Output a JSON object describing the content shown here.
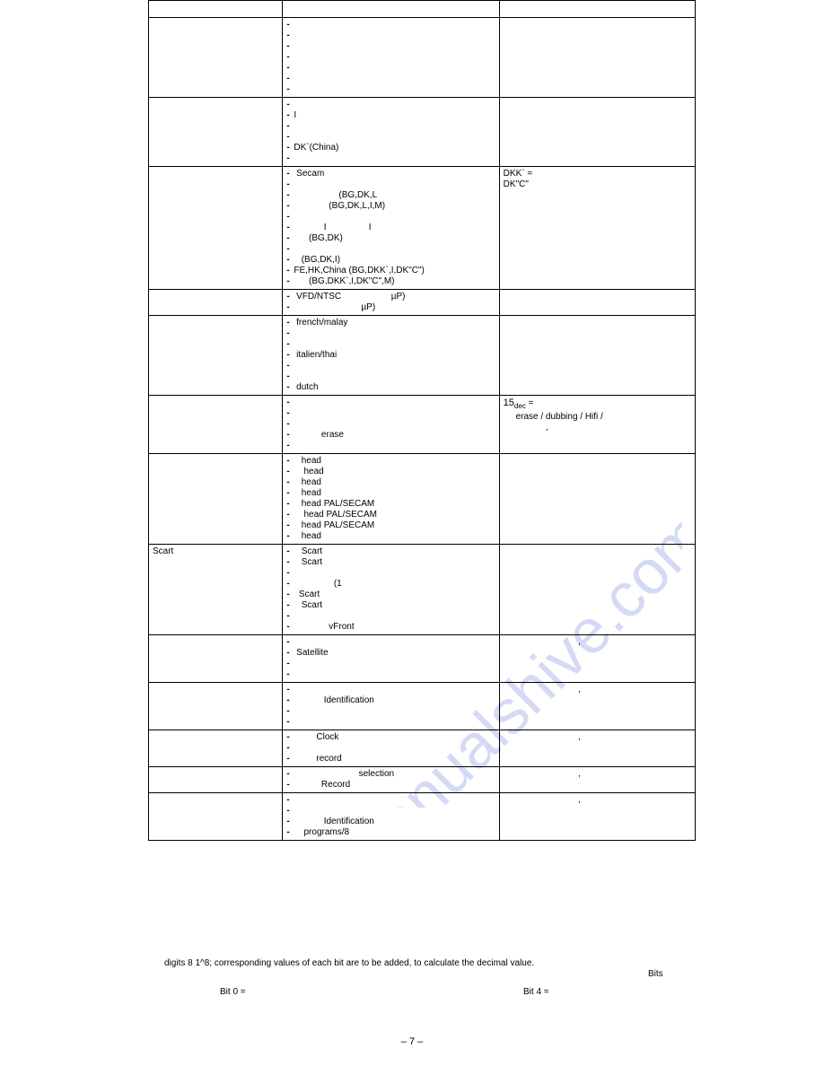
{
  "watermark": "manualshive.com",
  "page_number": "– 7 –",
  "table": {
    "columns": [
      "a",
      "b",
      "c"
    ],
    "rows": [
      {
        "a": "",
        "b": "",
        "c": "",
        "top_empty": true
      },
      {
        "a": "",
        "b_lines": [
          "-",
          "-",
          "-",
          "-",
          "-",
          "-",
          "-"
        ],
        "c": ""
      },
      {
        "a": "",
        "b_lines": [
          "-",
          "-I",
          "-",
          "-",
          "-DK`(China)",
          "-"
        ],
        "c": ""
      },
      {
        "a": "",
        "b_lines": [
          "- Secam",
          "-",
          "-                  (BG,DK,L",
          "-              (BG,DK,L,I,M)",
          "-",
          "-            I                 I",
          "-      (BG,DK)",
          "-",
          "-   (BG,DK,I)",
          "-FE,HK,China (BG,DKK`,I,DK\"C\")",
          "-      (BG,DKK`,I,DK\"C\",M)"
        ],
        "c_lines": [
          "",
          "",
          "",
          "",
          "",
          "",
          "",
          "",
          "",
          "DKK` =",
          "DK\"C\""
        ]
      },
      {
        "a": "",
        "b_lines": [
          "- VFD/NTSC                    µP)",
          "-                           µP)"
        ],
        "c": ""
      },
      {
        "a": "",
        "b_lines": [
          "- french/malay",
          "-",
          "-",
          "- italien/thai",
          "-",
          "-",
          "- dutch"
        ],
        "c": ""
      },
      {
        "a": "",
        "b_lines": [
          "-",
          "-",
          "-",
          "-           erase",
          "-"
        ],
        "c_lines": [
          "15dec =",
          "     erase / dubbing / Hifi /",
          "",
          "                 ,"
        ]
      },
      {
        "a": "",
        "b_lines": [
          "-   head",
          "-    head",
          "-   head",
          "-   head",
          "-   head PAL/SECAM",
          "-    head PAL/SECAM",
          "-   head PAL/SECAM",
          "-   head"
        ],
        "c": ""
      },
      {
        "a": "Scart",
        "b_lines": [
          "-   Scart",
          "-   Scart",
          "-",
          "-                (1",
          "-  Scart",
          "-   Scart",
          "-",
          "-              vFront"
        ],
        "c": ""
      },
      {
        "a": "",
        "b_lines": [
          "-",
          "- Satellite",
          "-",
          "-"
        ],
        "c_lines": [
          "",
          "                              ,"
        ]
      },
      {
        "a": "",
        "b_lines": [
          "-",
          "-            Identification",
          "-",
          "-"
        ],
        "c_lines": [
          "",
          "                              ,"
        ]
      },
      {
        "a": "",
        "b_lines": [
          "-         Clock",
          "-",
          "-         record"
        ],
        "c_lines": [
          "                              ,"
        ]
      },
      {
        "a": "",
        "b_lines": [
          "-                          selection",
          "-           Record"
        ],
        "c_lines": [
          "                              ,"
        ]
      },
      {
        "a": "",
        "b_lines": [
          "-",
          "-",
          "-            Identification",
          "-    programs/8"
        ],
        "c_lines": [
          "                              ,"
        ]
      }
    ]
  },
  "footer": {
    "line": "digits         8            1^8;       corresponding values of each bit are to be added,  to calculate the decimal value.",
    "bits_label": "Bits",
    "bit0": "Bit 0 =",
    "bit4": "Bit 4 ="
  }
}
